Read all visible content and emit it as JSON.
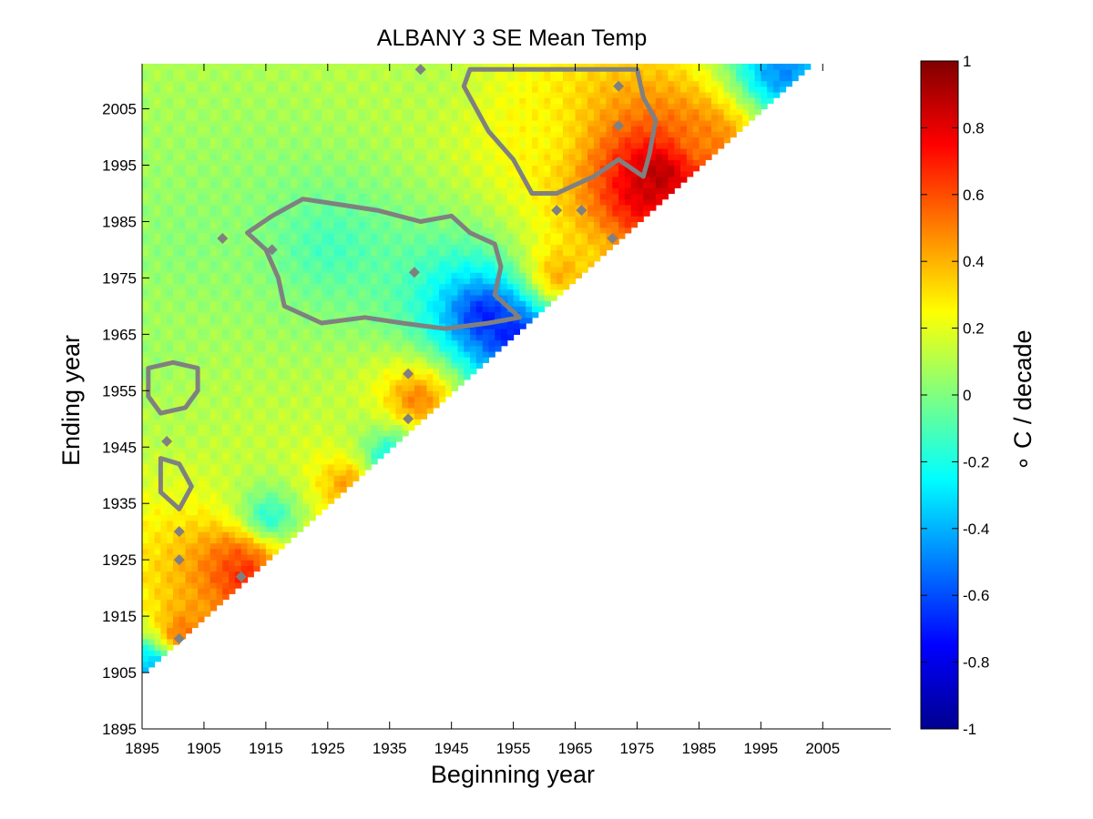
{
  "chart_data": {
    "type": "heatmap",
    "title": "ALBANY 3 SE Mean Temp",
    "xlabel": "Beginning year",
    "ylabel": "Ending year",
    "xlim": [
      1895,
      2016
    ],
    "ylim": [
      1895,
      2013
    ],
    "x_ticks": [
      1895,
      1905,
      1915,
      1925,
      1935,
      1945,
      1955,
      1965,
      1975,
      1985,
      1995,
      2005
    ],
    "y_ticks": [
      1895,
      1905,
      1915,
      1925,
      1935,
      1945,
      1955,
      1965,
      1975,
      1985,
      1995,
      2005
    ],
    "begin_year_range": [
      1895,
      2002
    ],
    "end_year_range": [
      1905,
      2012
    ],
    "colormap": "jet",
    "colorbar": {
      "label": "∘ C / decade",
      "range": [
        -1,
        1
      ],
      "ticks": [
        "1",
        "0.8",
        "0.6",
        "0.4",
        "0.2",
        "0",
        "-0.2",
        "-0.4",
        "-0.6",
        "-0.8",
        "-1"
      ]
    },
    "significance_contour_color": "#808080",
    "value_features": [
      {
        "begin": 1896,
        "end": 1960,
        "value": 0.05
      },
      {
        "begin": 1900,
        "end": 1950,
        "value": 0.1
      },
      {
        "begin": 1902,
        "end": 1980,
        "value": 0.02
      },
      {
        "begin": 1910,
        "end": 1925,
        "value": 0.6
      },
      {
        "begin": 1911,
        "end": 1922,
        "value": 0.75
      },
      {
        "begin": 1901,
        "end": 1911,
        "value": 0.6
      },
      {
        "begin": 1896,
        "end": 1906,
        "value": -0.45
      },
      {
        "begin": 1915,
        "end": 1932,
        "value": -0.25
      },
      {
        "begin": 1928,
        "end": 1938,
        "value": 0.5
      },
      {
        "begin": 1935,
        "end": 1942,
        "value": -0.35
      },
      {
        "begin": 1939,
        "end": 1953,
        "value": 0.55
      },
      {
        "begin": 1925,
        "end": 1980,
        "value": -0.12
      },
      {
        "begin": 1950,
        "end": 1968,
        "value": -0.75
      },
      {
        "begin": 1955,
        "end": 1964,
        "value": -0.8
      },
      {
        "begin": 1962,
        "end": 1975,
        "value": 0.45
      },
      {
        "begin": 1958,
        "end": 2000,
        "value": 0.25
      },
      {
        "begin": 1976,
        "end": 1990,
        "value": 0.85
      },
      {
        "begin": 1978,
        "end": 1993,
        "value": 0.95
      },
      {
        "begin": 1985,
        "end": 1999,
        "value": 0.5
      },
      {
        "begin": 1998,
        "end": 2011,
        "value": -0.5
      },
      {
        "begin": 1940,
        "end": 2010,
        "value": 0.1
      }
    ]
  }
}
